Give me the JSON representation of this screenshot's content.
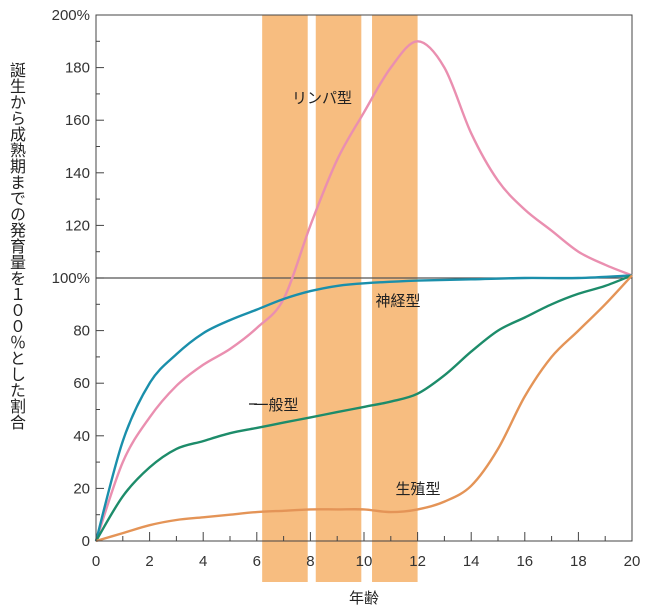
{
  "chart_data": {
    "type": "line",
    "title": "",
    "xlabel": "年齢",
    "ylabel": "誕生から成熟期までの発育量を１００％とした割合",
    "xlim": [
      0,
      20
    ],
    "ylim": [
      0,
      200
    ],
    "x_ticks": [
      "0",
      "2",
      "4",
      "6",
      "8",
      "10",
      "12",
      "14",
      "16",
      "18",
      "20"
    ],
    "y_ticks": [
      "0",
      "20",
      "40",
      "60",
      "80",
      "100%",
      "120",
      "140",
      "160",
      "180",
      "200%"
    ],
    "reference_line": 100,
    "highlight_bands": [
      [
        6.2,
        7.9
      ],
      [
        8.2,
        9.9
      ],
      [
        10.3,
        12.0
      ]
    ],
    "colors": {
      "band": "#f7bd80",
      "lymph": "#ea8fb0",
      "neural": "#1a8fab",
      "general": "#1d8c6a",
      "reproductive": "#e49457",
      "axis": "#444444"
    },
    "series": [
      {
        "name": "リンパ型",
        "color_key": "lymph",
        "points": [
          [
            0,
            0
          ],
          [
            1,
            30
          ],
          [
            2,
            47
          ],
          [
            3,
            59
          ],
          [
            4,
            67
          ],
          [
            5,
            73
          ],
          [
            6,
            81
          ],
          [
            7,
            92
          ],
          [
            8,
            120
          ],
          [
            9,
            145
          ],
          [
            10,
            163
          ],
          [
            11,
            180
          ],
          [
            12,
            190
          ],
          [
            13,
            180
          ],
          [
            14,
            155
          ],
          [
            15,
            137
          ],
          [
            16,
            126
          ],
          [
            17,
            118
          ],
          [
            18,
            110
          ],
          [
            19,
            105
          ],
          [
            20,
            101
          ]
        ]
      },
      {
        "name": "神経型",
        "color_key": "neural",
        "points": [
          [
            0,
            0
          ],
          [
            1,
            38
          ],
          [
            2,
            60
          ],
          [
            3,
            71
          ],
          [
            4,
            79
          ],
          [
            5,
            84
          ],
          [
            6,
            88
          ],
          [
            7,
            92
          ],
          [
            8,
            95
          ],
          [
            9,
            97
          ],
          [
            10,
            98
          ],
          [
            12,
            99
          ],
          [
            14,
            99.5
          ],
          [
            16,
            100
          ],
          [
            18,
            100
          ],
          [
            20,
            101
          ]
        ]
      },
      {
        "name": "一般型",
        "color_key": "general",
        "points": [
          [
            0,
            0
          ],
          [
            1,
            17
          ],
          [
            2,
            28
          ],
          [
            3,
            35
          ],
          [
            4,
            38
          ],
          [
            5,
            41
          ],
          [
            6,
            43
          ],
          [
            7,
            45
          ],
          [
            8,
            47
          ],
          [
            9,
            49
          ],
          [
            10,
            51
          ],
          [
            11,
            53
          ],
          [
            12,
            56
          ],
          [
            13,
            63
          ],
          [
            14,
            72
          ],
          [
            15,
            80
          ],
          [
            16,
            85
          ],
          [
            17,
            90
          ],
          [
            18,
            94
          ],
          [
            19,
            97
          ],
          [
            20,
            101
          ]
        ]
      },
      {
        "name": "生殖型",
        "color_key": "reproductive",
        "points": [
          [
            0,
            0
          ],
          [
            1,
            3
          ],
          [
            2,
            6
          ],
          [
            3,
            8
          ],
          [
            4,
            9
          ],
          [
            5,
            10
          ],
          [
            6,
            11
          ],
          [
            7,
            11.5
          ],
          [
            8,
            12
          ],
          [
            9,
            12
          ],
          [
            10,
            12
          ],
          [
            11,
            11
          ],
          [
            12,
            12
          ],
          [
            13,
            15
          ],
          [
            14,
            21
          ],
          [
            15,
            35
          ],
          [
            16,
            55
          ],
          [
            17,
            70
          ],
          [
            18,
            80
          ],
          [
            19,
            90
          ],
          [
            20,
            101
          ]
        ]
      }
    ],
    "labels": [
      {
        "text": "リンパ型",
        "series": "lymph"
      },
      {
        "text": "神経型",
        "series": "neural"
      },
      {
        "text": "一般型",
        "series": "general"
      },
      {
        "text": "生殖型",
        "series": "reproductive"
      }
    ]
  }
}
